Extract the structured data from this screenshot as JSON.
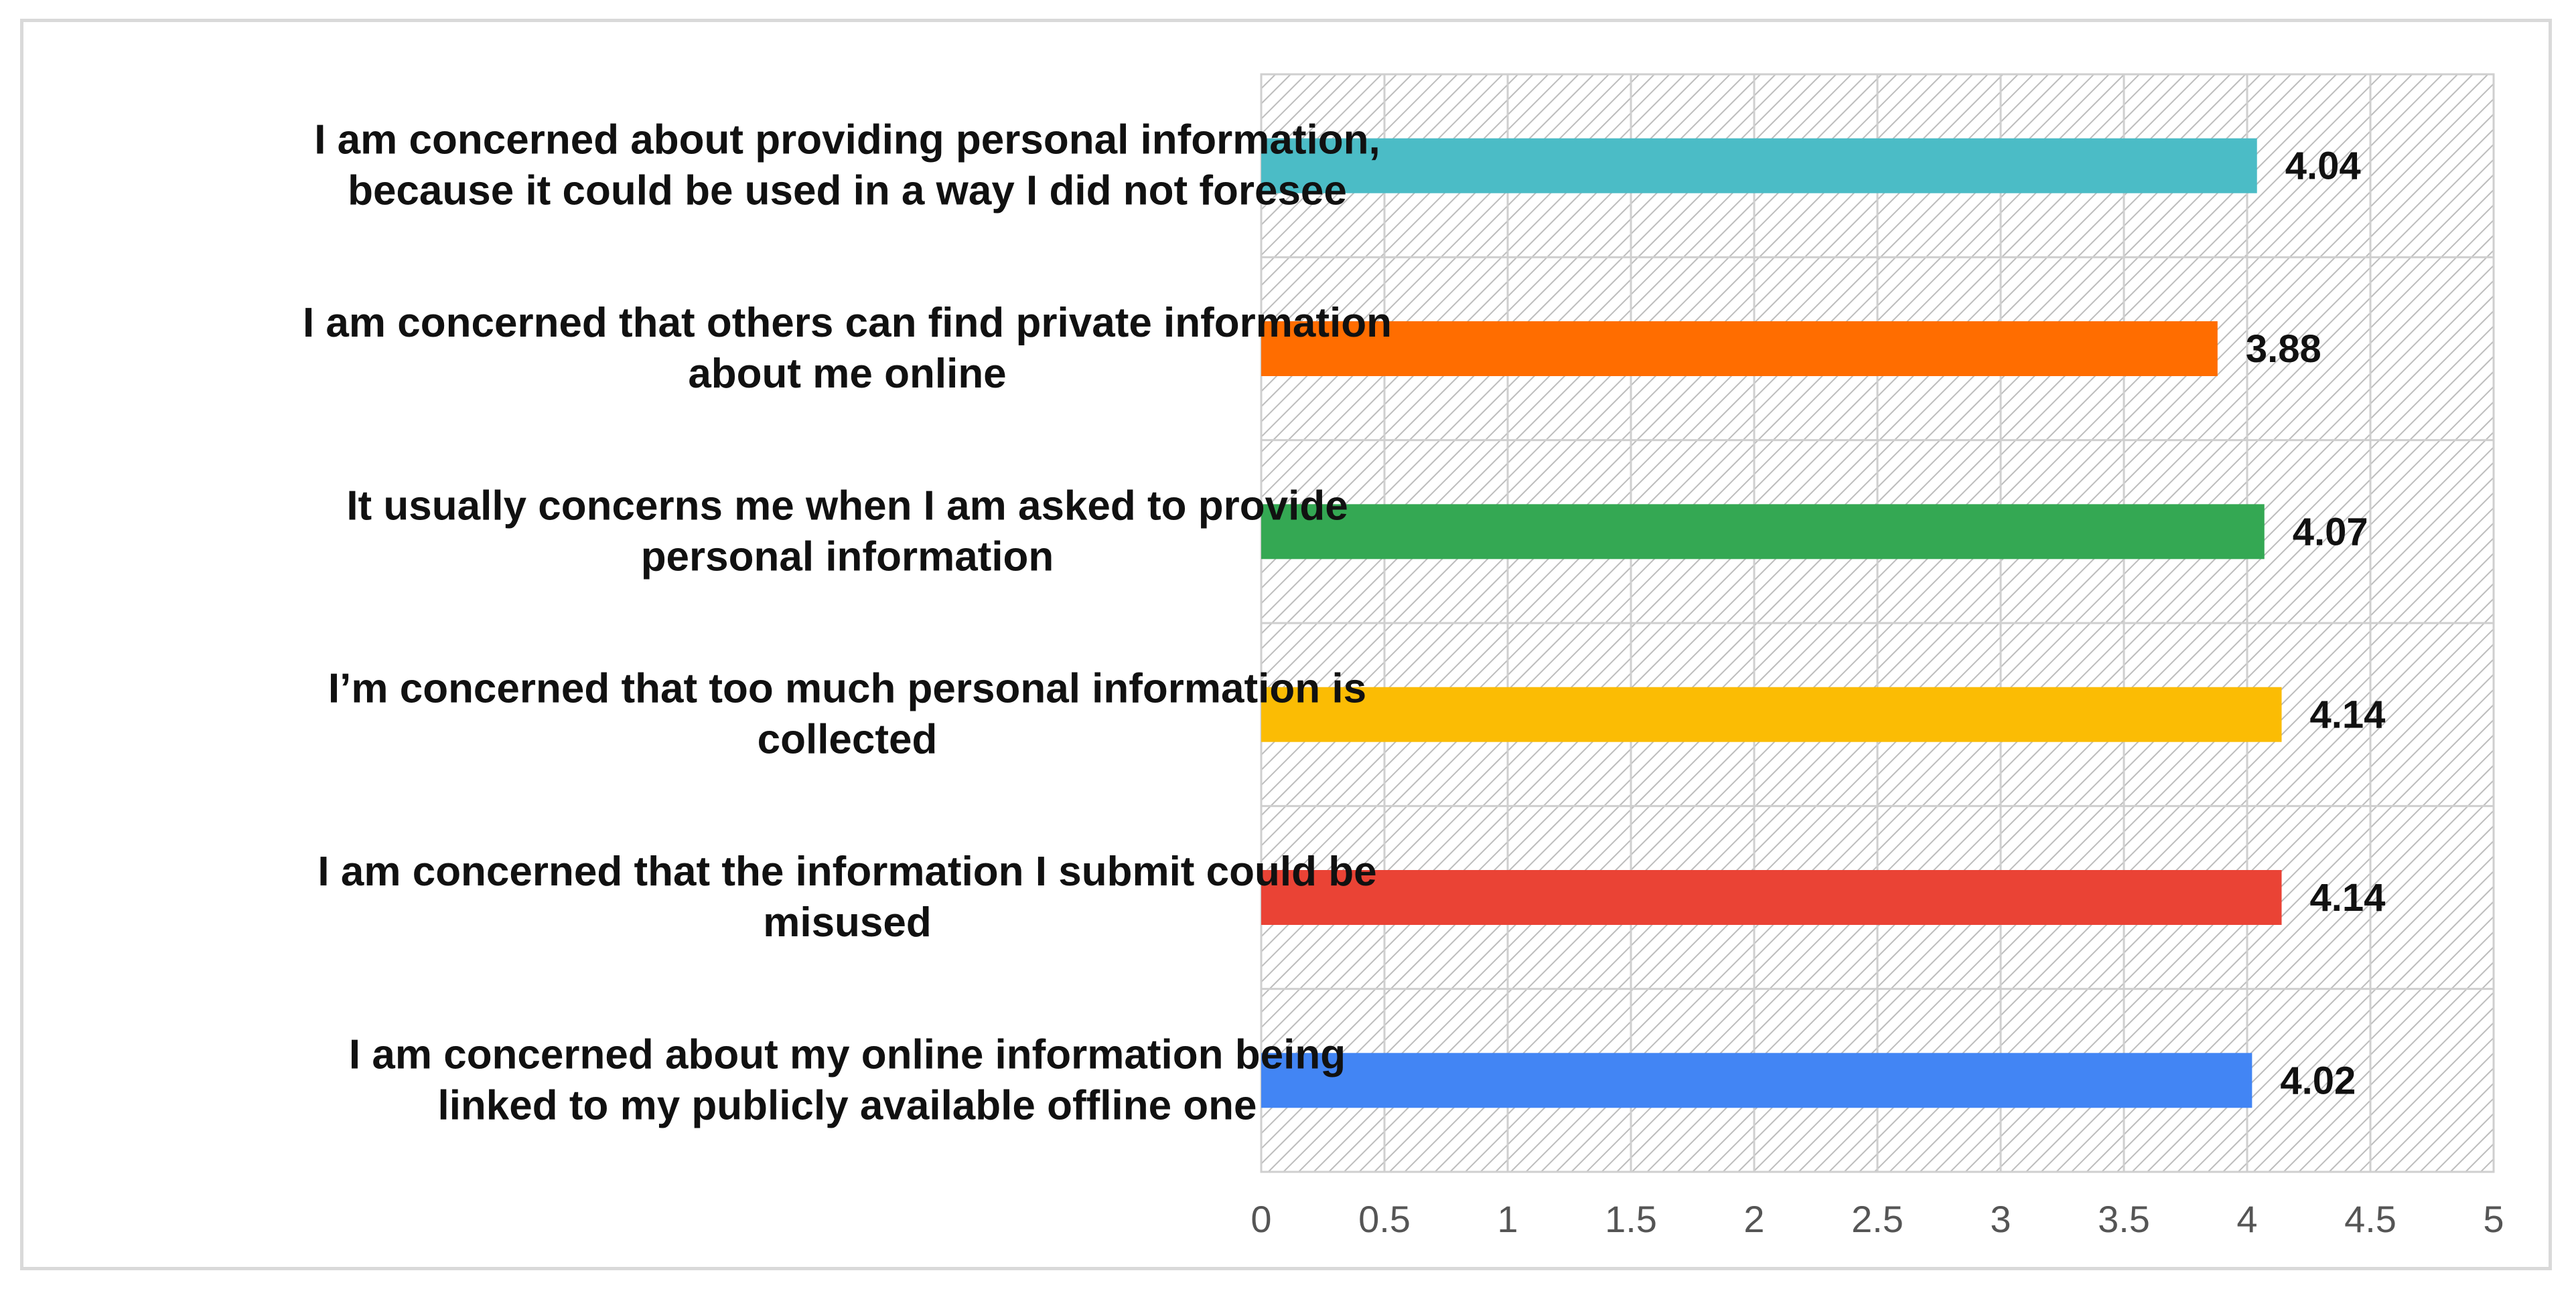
{
  "chart_data": {
    "type": "bar",
    "orientation": "horizontal",
    "categories": [
      [
        "I am concerned about providing personal information,",
        "because it could be used in a way I did not foresee"
      ],
      [
        "I am concerned that others can find private information",
        "about me online"
      ],
      [
        "It usually concerns me when I am asked to provide",
        "personal information"
      ],
      [
        "I’m concerned that too much personal information is",
        "collected"
      ],
      [
        "I am concerned that the information I submit could be",
        "misused"
      ],
      [
        "I am concerned about my online information being",
        "linked to my publicly available offline one"
      ]
    ],
    "values": [
      4.04,
      3.88,
      4.07,
      4.14,
      4.14,
      4.02
    ],
    "data_labels": [
      "4.04",
      "3.88",
      "4.07",
      "4.14",
      "4.14",
      "4.02"
    ],
    "colors": [
      "#4bbcc6",
      "#ff6d00",
      "#34a853",
      "#fbbc04",
      "#ea4335",
      "#4285f4"
    ],
    "title": "",
    "xlabel": "",
    "ylabel": "",
    "xlim": [
      0,
      5
    ],
    "x_ticks": [
      "0",
      "0.5",
      "1",
      "1.5",
      "2",
      "2.5",
      "3",
      "3.5",
      "4",
      "4.5",
      "5"
    ],
    "grid": true,
    "plot_background": "hatched",
    "legend": "none"
  }
}
